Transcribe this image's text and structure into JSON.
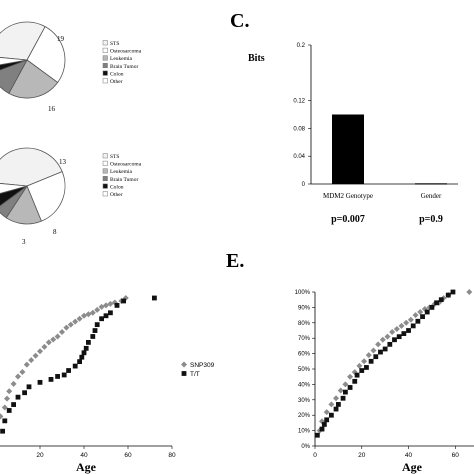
{
  "chart_data": [
    {
      "panel": "pie-top",
      "type": "pie",
      "slices": [
        {
          "label": "STS",
          "value": 22,
          "color": "#f2f2f2"
        },
        {
          "label": "Osteosarcoma",
          "value": 19,
          "color": "#ffffff"
        },
        {
          "label": "Leukemia",
          "value": 16,
          "color": "#b8b8b8"
        },
        {
          "label": "Brain Tumor",
          "value": 8,
          "color": "#808080"
        },
        {
          "label": "Colon",
          "value": 2,
          "color": "#111111"
        },
        {
          "label": "Other",
          "value": 3,
          "color": "#ffffff"
        }
      ],
      "visible_labels": [
        "19",
        "16"
      ],
      "legend": [
        "STS",
        "Osteosarcoma",
        "Leukemia",
        "Brain Tumor",
        "Colon",
        "Other"
      ]
    },
    {
      "panel": "pie-bottom",
      "type": "pie",
      "slices": [
        {
          "label": "STS",
          "value": 22,
          "color": "#f2f2f2"
        },
        {
          "label": "Osteosarcoma",
          "value": 13,
          "color": "#ffffff"
        },
        {
          "label": "Leukemia",
          "value": 8,
          "color": "#b8b8b8"
        },
        {
          "label": "Brain Tumor",
          "value": 3,
          "color": "#808080"
        },
        {
          "label": "Colon",
          "value": 3,
          "color": "#111111"
        },
        {
          "label": "Other",
          "value": 3,
          "color": "#ffffff"
        }
      ],
      "visible_labels": [
        "13",
        "8",
        "3"
      ],
      "legend": [
        "STS",
        "Osteosarcoma",
        "Leukemia",
        "Brain Tumor",
        "Colon",
        "Other"
      ]
    },
    {
      "panel": "C",
      "panel_label": "C.",
      "type": "bar",
      "ylabel": "Bits",
      "categories": [
        "MDM2 Genotype",
        "Gender"
      ],
      "values": [
        0.1,
        0.001
      ],
      "pvalues": [
        "p=0.007",
        "p=0.9"
      ],
      "ylim": [
        0,
        0.2
      ],
      "yticks": [
        "0",
        "0.04",
        "0.08",
        "0.12",
        "0.2"
      ],
      "ytick_values": [
        0,
        0.04,
        0.08,
        0.12,
        0.2
      ],
      "grid": false
    },
    {
      "panel": "E-left",
      "panel_label": "E.",
      "type": "scatter",
      "xlabel": "Age",
      "xticks": [
        20,
        40,
        60,
        80
      ],
      "xlim": [
        0,
        80
      ],
      "ylim": [
        0,
        1
      ],
      "legend_position": "right",
      "series": [
        {
          "name": "SNP309",
          "marker": "diamond",
          "color": "#8c8c8c",
          "points": [
            [
              2,
              0.2
            ],
            [
              4,
              0.26
            ],
            [
              5,
              0.32
            ],
            [
              6,
              0.37
            ],
            [
              8,
              0.42
            ],
            [
              10,
              0.47
            ],
            [
              12,
              0.5
            ],
            [
              14,
              0.55
            ],
            [
              16,
              0.58
            ],
            [
              18,
              0.61
            ],
            [
              20,
              0.64
            ],
            [
              22,
              0.67
            ],
            [
              24,
              0.7
            ],
            [
              26,
              0.72
            ],
            [
              28,
              0.74
            ],
            [
              30,
              0.77
            ],
            [
              32,
              0.8
            ],
            [
              34,
              0.82
            ],
            [
              36,
              0.84
            ],
            [
              38,
              0.86
            ],
            [
              40,
              0.88
            ],
            [
              42,
              0.89
            ],
            [
              44,
              0.9
            ],
            [
              46,
              0.92
            ],
            [
              48,
              0.94
            ],
            [
              50,
              0.95
            ],
            [
              52,
              0.96
            ],
            [
              54,
              0.97
            ],
            [
              57,
              0.98
            ],
            [
              59,
              1.0
            ]
          ]
        },
        {
          "name": "T/T",
          "marker": "square",
          "color": "#111111",
          "points": [
            [
              3,
              0.1
            ],
            [
              4,
              0.17
            ],
            [
              6,
              0.24
            ],
            [
              8,
              0.28
            ],
            [
              10,
              0.33
            ],
            [
              13,
              0.36
            ],
            [
              15,
              0.4
            ],
            [
              20,
              0.43
            ],
            [
              25,
              0.45
            ],
            [
              28,
              0.47
            ],
            [
              31,
              0.48
            ],
            [
              33,
              0.51
            ],
            [
              36,
              0.54
            ],
            [
              38,
              0.57
            ],
            [
              39,
              0.6
            ],
            [
              40,
              0.63
            ],
            [
              41,
              0.66
            ],
            [
              42,
              0.7
            ],
            [
              44,
              0.74
            ],
            [
              45,
              0.78
            ],
            [
              46,
              0.82
            ],
            [
              48,
              0.86
            ],
            [
              50,
              0.88
            ],
            [
              52,
              0.9
            ],
            [
              55,
              0.95
            ],
            [
              58,
              0.98
            ],
            [
              72,
              1.0
            ]
          ]
        }
      ]
    },
    {
      "panel": "E-right",
      "type": "scatter",
      "xlabel": "Age",
      "xticks": [
        0,
        20,
        40,
        60
      ],
      "xlim": [
        0,
        68
      ],
      "ylim": [
        0,
        1
      ],
      "yticks": [
        "0%",
        "10%",
        "20%",
        "30%",
        "40%",
        "50%",
        "60%",
        "70%",
        "80%",
        "90%",
        "100%"
      ],
      "ytick_values": [
        0,
        0.1,
        0.2,
        0.3,
        0.4,
        0.5,
        0.6,
        0.7,
        0.8,
        0.9,
        1.0
      ],
      "series": [
        {
          "marker": "diamond",
          "color": "#8c8c8c",
          "points": [
            [
              2,
              0.1
            ],
            [
              3,
              0.16
            ],
            [
              5,
              0.22
            ],
            [
              7,
              0.27
            ],
            [
              9,
              0.31
            ],
            [
              11,
              0.36
            ],
            [
              13,
              0.4
            ],
            [
              15,
              0.45
            ],
            [
              17,
              0.48
            ],
            [
              19,
              0.52
            ],
            [
              21,
              0.55
            ],
            [
              23,
              0.59
            ],
            [
              25,
              0.62
            ],
            [
              27,
              0.66
            ],
            [
              29,
              0.69
            ],
            [
              31,
              0.71
            ],
            [
              33,
              0.74
            ],
            [
              35,
              0.76
            ],
            [
              37,
              0.78
            ],
            [
              39,
              0.8
            ],
            [
              41,
              0.82
            ],
            [
              43,
              0.85
            ],
            [
              45,
              0.87
            ],
            [
              47,
              0.89
            ],
            [
              49,
              0.9
            ],
            [
              51,
              0.92
            ],
            [
              53,
              0.93
            ],
            [
              55,
              0.96
            ],
            [
              57,
              0.98
            ],
            [
              66,
              1.0
            ]
          ]
        },
        {
          "marker": "square",
          "color": "#111111",
          "points": [
            [
              1,
              0.07
            ],
            [
              3,
              0.11
            ],
            [
              4,
              0.14
            ],
            [
              5,
              0.17
            ],
            [
              7,
              0.2
            ],
            [
              9,
              0.24
            ],
            [
              10,
              0.27
            ],
            [
              12,
              0.31
            ],
            [
              13,
              0.35
            ],
            [
              15,
              0.38
            ],
            [
              17,
              0.42
            ],
            [
              18,
              0.46
            ],
            [
              20,
              0.49
            ],
            [
              22,
              0.51
            ],
            [
              24,
              0.55
            ],
            [
              26,
              0.58
            ],
            [
              28,
              0.61
            ],
            [
              30,
              0.63
            ],
            [
              32,
              0.66
            ],
            [
              34,
              0.69
            ],
            [
              36,
              0.71
            ],
            [
              38,
              0.73
            ],
            [
              40,
              0.75
            ],
            [
              42,
              0.78
            ],
            [
              44,
              0.81
            ],
            [
              46,
              0.84
            ],
            [
              48,
              0.87
            ],
            [
              50,
              0.9
            ],
            [
              52,
              0.93
            ],
            [
              54,
              0.95
            ],
            [
              57,
              0.98
            ],
            [
              59,
              1.0
            ]
          ]
        }
      ]
    }
  ]
}
